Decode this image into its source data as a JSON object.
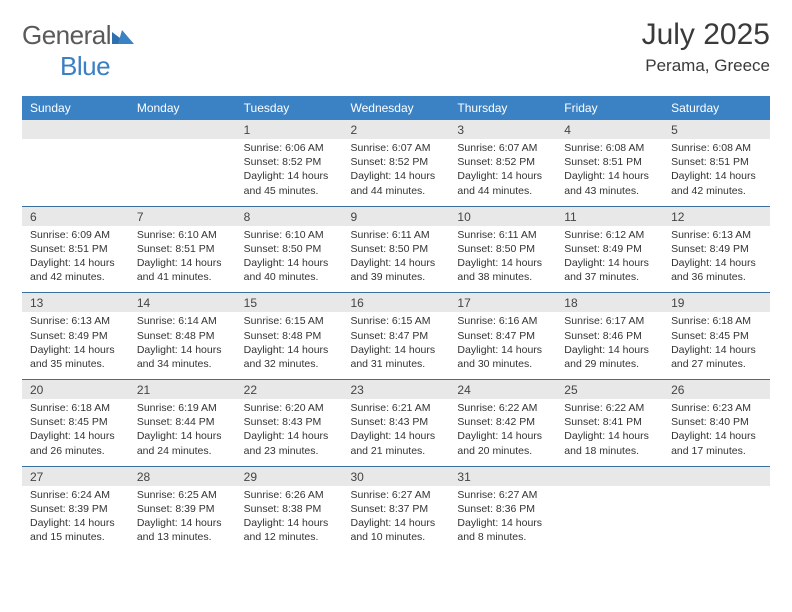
{
  "brand": {
    "name_part1": "General",
    "name_part2": "Blue"
  },
  "title": {
    "month": "July 2025",
    "location": "Perama, Greece"
  },
  "colors": {
    "header_bg": "#3b82c4",
    "header_text": "#ffffff",
    "daynum_bg": "#e8e8e8",
    "row_divider": "#3b6fa0",
    "body_text": "#333333",
    "title_text": "#3a3a3a",
    "logo_gray": "#5a5a5a",
    "logo_blue": "#3b7fc4"
  },
  "day_headers": [
    "Sunday",
    "Monday",
    "Tuesday",
    "Wednesday",
    "Thursday",
    "Friday",
    "Saturday"
  ],
  "weeks": [
    [
      null,
      null,
      {
        "n": "1",
        "sr": "Sunrise: 6:06 AM",
        "ss": "Sunset: 8:52 PM",
        "dl": "Daylight: 14 hours and 45 minutes."
      },
      {
        "n": "2",
        "sr": "Sunrise: 6:07 AM",
        "ss": "Sunset: 8:52 PM",
        "dl": "Daylight: 14 hours and 44 minutes."
      },
      {
        "n": "3",
        "sr": "Sunrise: 6:07 AM",
        "ss": "Sunset: 8:52 PM",
        "dl": "Daylight: 14 hours and 44 minutes."
      },
      {
        "n": "4",
        "sr": "Sunrise: 6:08 AM",
        "ss": "Sunset: 8:51 PM",
        "dl": "Daylight: 14 hours and 43 minutes."
      },
      {
        "n": "5",
        "sr": "Sunrise: 6:08 AM",
        "ss": "Sunset: 8:51 PM",
        "dl": "Daylight: 14 hours and 42 minutes."
      }
    ],
    [
      {
        "n": "6",
        "sr": "Sunrise: 6:09 AM",
        "ss": "Sunset: 8:51 PM",
        "dl": "Daylight: 14 hours and 42 minutes."
      },
      {
        "n": "7",
        "sr": "Sunrise: 6:10 AM",
        "ss": "Sunset: 8:51 PM",
        "dl": "Daylight: 14 hours and 41 minutes."
      },
      {
        "n": "8",
        "sr": "Sunrise: 6:10 AM",
        "ss": "Sunset: 8:50 PM",
        "dl": "Daylight: 14 hours and 40 minutes."
      },
      {
        "n": "9",
        "sr": "Sunrise: 6:11 AM",
        "ss": "Sunset: 8:50 PM",
        "dl": "Daylight: 14 hours and 39 minutes."
      },
      {
        "n": "10",
        "sr": "Sunrise: 6:11 AM",
        "ss": "Sunset: 8:50 PM",
        "dl": "Daylight: 14 hours and 38 minutes."
      },
      {
        "n": "11",
        "sr": "Sunrise: 6:12 AM",
        "ss": "Sunset: 8:49 PM",
        "dl": "Daylight: 14 hours and 37 minutes."
      },
      {
        "n": "12",
        "sr": "Sunrise: 6:13 AM",
        "ss": "Sunset: 8:49 PM",
        "dl": "Daylight: 14 hours and 36 minutes."
      }
    ],
    [
      {
        "n": "13",
        "sr": "Sunrise: 6:13 AM",
        "ss": "Sunset: 8:49 PM",
        "dl": "Daylight: 14 hours and 35 minutes."
      },
      {
        "n": "14",
        "sr": "Sunrise: 6:14 AM",
        "ss": "Sunset: 8:48 PM",
        "dl": "Daylight: 14 hours and 34 minutes."
      },
      {
        "n": "15",
        "sr": "Sunrise: 6:15 AM",
        "ss": "Sunset: 8:48 PM",
        "dl": "Daylight: 14 hours and 32 minutes."
      },
      {
        "n": "16",
        "sr": "Sunrise: 6:15 AM",
        "ss": "Sunset: 8:47 PM",
        "dl": "Daylight: 14 hours and 31 minutes."
      },
      {
        "n": "17",
        "sr": "Sunrise: 6:16 AM",
        "ss": "Sunset: 8:47 PM",
        "dl": "Daylight: 14 hours and 30 minutes."
      },
      {
        "n": "18",
        "sr": "Sunrise: 6:17 AM",
        "ss": "Sunset: 8:46 PM",
        "dl": "Daylight: 14 hours and 29 minutes."
      },
      {
        "n": "19",
        "sr": "Sunrise: 6:18 AM",
        "ss": "Sunset: 8:45 PM",
        "dl": "Daylight: 14 hours and 27 minutes."
      }
    ],
    [
      {
        "n": "20",
        "sr": "Sunrise: 6:18 AM",
        "ss": "Sunset: 8:45 PM",
        "dl": "Daylight: 14 hours and 26 minutes."
      },
      {
        "n": "21",
        "sr": "Sunrise: 6:19 AM",
        "ss": "Sunset: 8:44 PM",
        "dl": "Daylight: 14 hours and 24 minutes."
      },
      {
        "n": "22",
        "sr": "Sunrise: 6:20 AM",
        "ss": "Sunset: 8:43 PM",
        "dl": "Daylight: 14 hours and 23 minutes."
      },
      {
        "n": "23",
        "sr": "Sunrise: 6:21 AM",
        "ss": "Sunset: 8:43 PM",
        "dl": "Daylight: 14 hours and 21 minutes."
      },
      {
        "n": "24",
        "sr": "Sunrise: 6:22 AM",
        "ss": "Sunset: 8:42 PM",
        "dl": "Daylight: 14 hours and 20 minutes."
      },
      {
        "n": "25",
        "sr": "Sunrise: 6:22 AM",
        "ss": "Sunset: 8:41 PM",
        "dl": "Daylight: 14 hours and 18 minutes."
      },
      {
        "n": "26",
        "sr": "Sunrise: 6:23 AM",
        "ss": "Sunset: 8:40 PM",
        "dl": "Daylight: 14 hours and 17 minutes."
      }
    ],
    [
      {
        "n": "27",
        "sr": "Sunrise: 6:24 AM",
        "ss": "Sunset: 8:39 PM",
        "dl": "Daylight: 14 hours and 15 minutes."
      },
      {
        "n": "28",
        "sr": "Sunrise: 6:25 AM",
        "ss": "Sunset: 8:39 PM",
        "dl": "Daylight: 14 hours and 13 minutes."
      },
      {
        "n": "29",
        "sr": "Sunrise: 6:26 AM",
        "ss": "Sunset: 8:38 PM",
        "dl": "Daylight: 14 hours and 12 minutes."
      },
      {
        "n": "30",
        "sr": "Sunrise: 6:27 AM",
        "ss": "Sunset: 8:37 PM",
        "dl": "Daylight: 14 hours and 10 minutes."
      },
      {
        "n": "31",
        "sr": "Sunrise: 6:27 AM",
        "ss": "Sunset: 8:36 PM",
        "dl": "Daylight: 14 hours and 8 minutes."
      },
      null,
      null
    ]
  ]
}
